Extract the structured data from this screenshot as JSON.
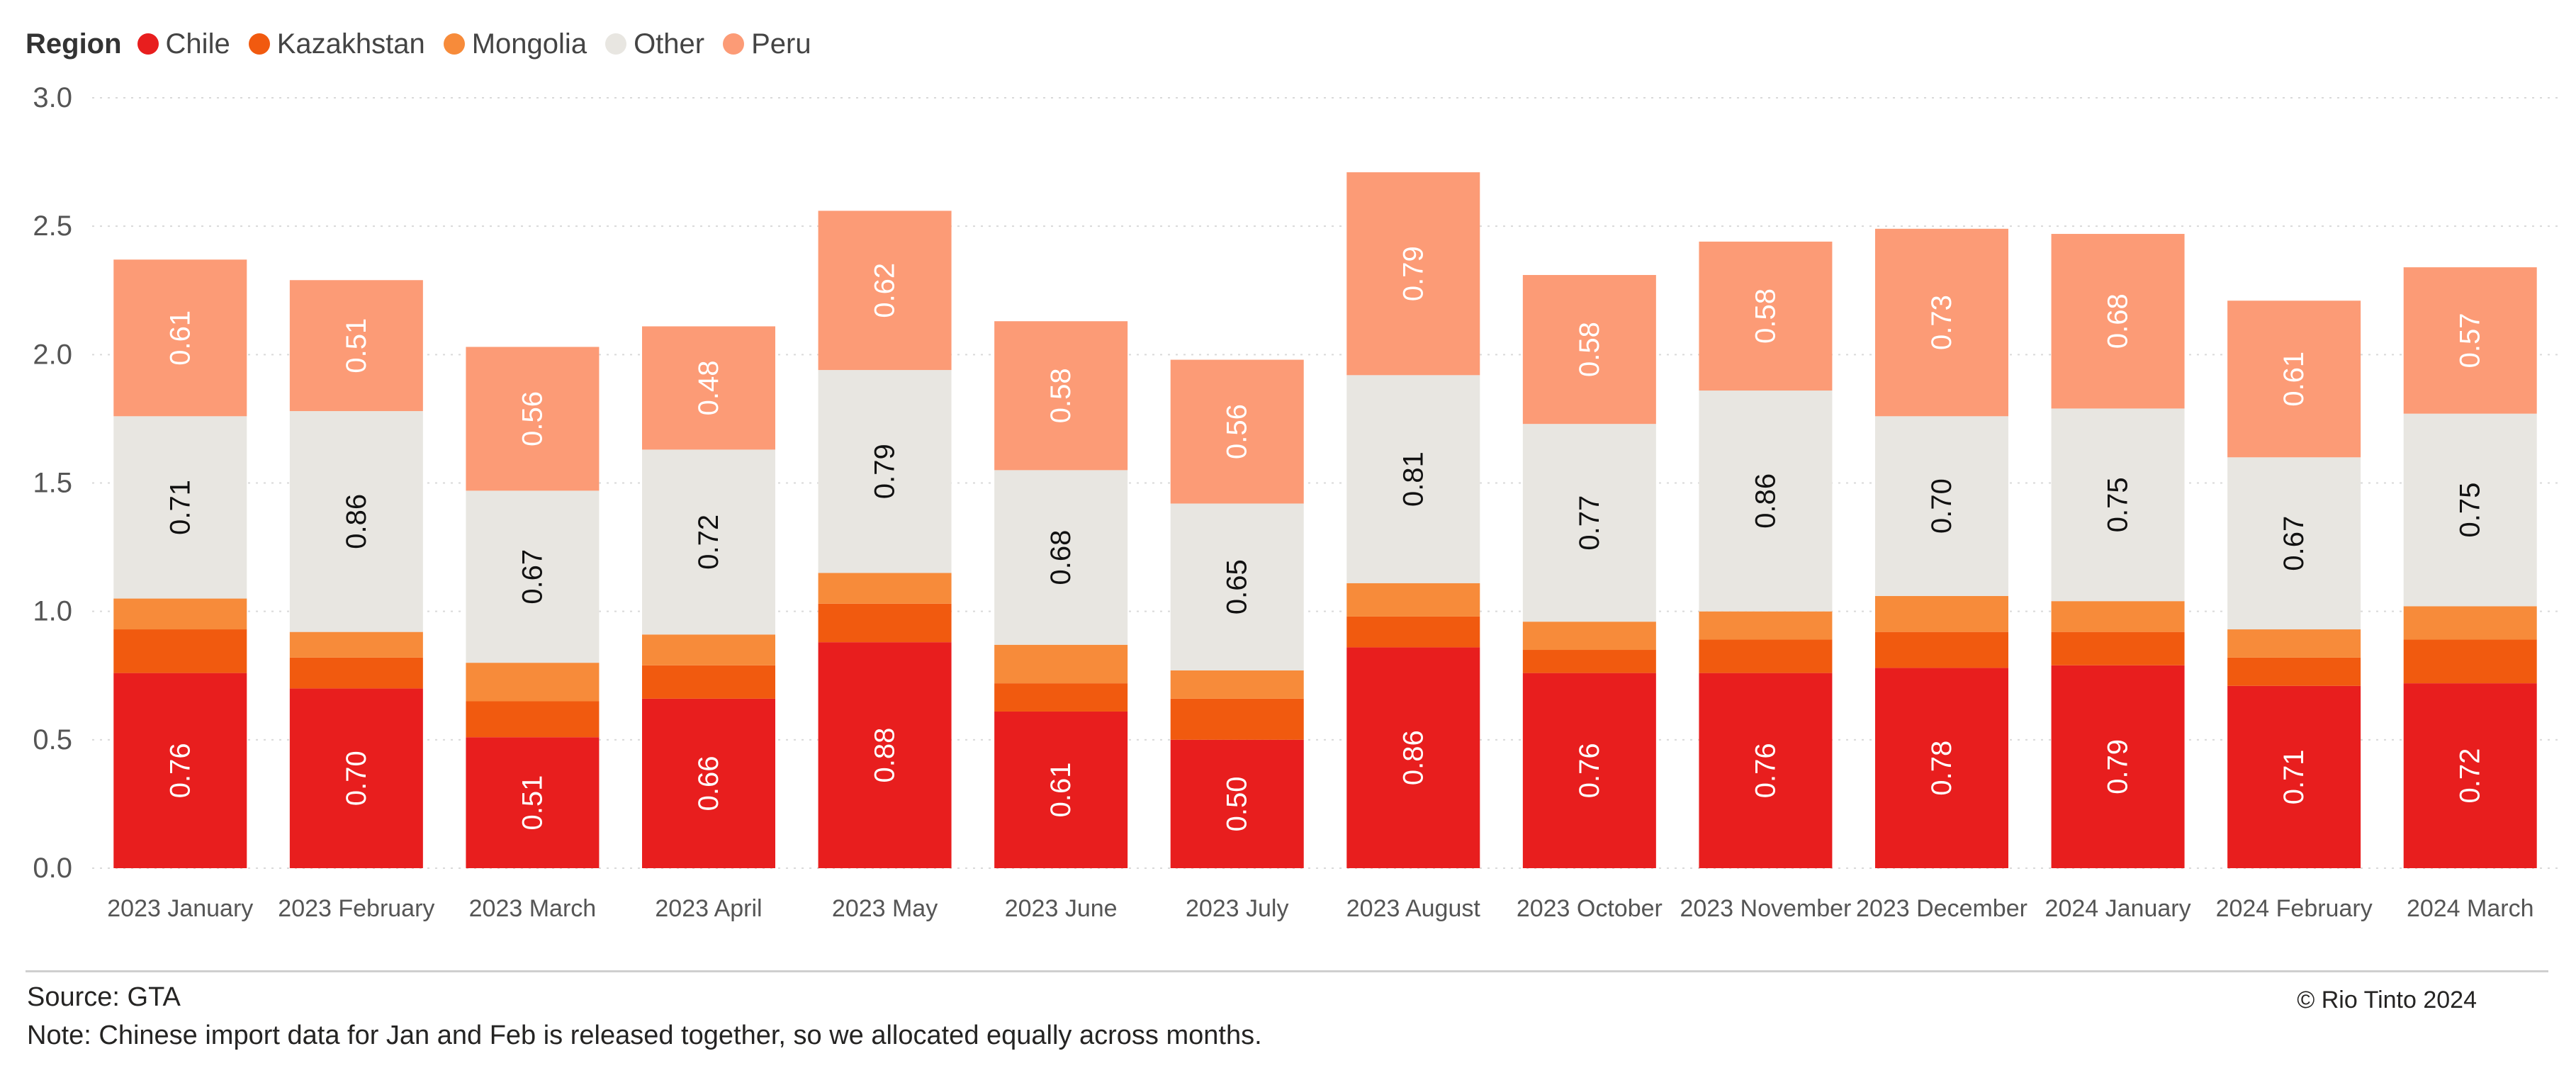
{
  "legend": {
    "title": "Region",
    "items": [
      {
        "name": "Chile",
        "color": "#E81E1E"
      },
      {
        "name": "Kazakhstan",
        "color": "#F15A0F"
      },
      {
        "name": "Mongolia",
        "color": "#F78B3A"
      },
      {
        "name": "Other",
        "color": "#E8E6E1"
      },
      {
        "name": "Peru",
        "color": "#FC9B76"
      }
    ]
  },
  "chart_data": {
    "type": "bar",
    "stacked": true,
    "categories": [
      "2023 January",
      "2023 February",
      "2023 March",
      "2023 April",
      "2023 May",
      "2023 June",
      "2023 July",
      "2023 August",
      "2023 October",
      "2023 November",
      "2023 December",
      "2024 January",
      "2024 February",
      "2024 March"
    ],
    "series": [
      {
        "name": "Chile",
        "color": "#E81E1E",
        "labelColor": "#FFFFFF",
        "showLabels": true,
        "values": [
          0.76,
          0.7,
          0.51,
          0.66,
          0.88,
          0.61,
          0.5,
          0.86,
          0.76,
          0.76,
          0.78,
          0.79,
          0.71,
          0.72
        ]
      },
      {
        "name": "Kazakhstan",
        "color": "#F15A0F",
        "labelColor": "#FFFFFF",
        "showLabels": false,
        "values": [
          0.17,
          0.12,
          0.14,
          0.13,
          0.15,
          0.11,
          0.16,
          0.12,
          0.09,
          0.13,
          0.14,
          0.13,
          0.11,
          0.17
        ]
      },
      {
        "name": "Mongolia",
        "color": "#F78B3A",
        "labelColor": "#FFFFFF",
        "showLabels": false,
        "values": [
          0.12,
          0.1,
          0.15,
          0.12,
          0.12,
          0.15,
          0.11,
          0.13,
          0.11,
          0.11,
          0.14,
          0.12,
          0.11,
          0.13
        ]
      },
      {
        "name": "Other",
        "color": "#E8E6E1",
        "labelColor": "#111111",
        "showLabels": true,
        "values": [
          0.71,
          0.86,
          0.67,
          0.72,
          0.79,
          0.68,
          0.65,
          0.81,
          0.77,
          0.86,
          0.7,
          0.75,
          0.67,
          0.75
        ]
      },
      {
        "name": "Peru",
        "color": "#FC9B76",
        "labelColor": "#FFFFFF",
        "showLabels": true,
        "values": [
          0.61,
          0.51,
          0.56,
          0.48,
          0.62,
          0.58,
          0.56,
          0.79,
          0.58,
          0.58,
          0.73,
          0.68,
          0.61,
          0.57
        ]
      }
    ],
    "value_labels": {
      "Chile": [
        "0.76",
        "0.70",
        "0.51",
        "0.66",
        "0.88",
        "0.61",
        "0.50",
        "0.86",
        "0.76",
        "0.76",
        "0.78",
        "0.79",
        "0.71",
        "0.72"
      ],
      "Other": [
        "0.71",
        "0.86",
        "0.67",
        "0.72",
        "0.79",
        "0.68",
        "0.65",
        "0.81",
        "0.77",
        "0.86",
        "0.70",
        "0.75",
        "0.67",
        "0.75"
      ],
      "Peru": [
        "0.61",
        "0.51",
        "0.56",
        "0.48",
        "0.62",
        "0.58",
        "0.56",
        "0.79",
        "0.58",
        "0.58",
        "0.73",
        "0.68",
        "0.61",
        "0.57"
      ]
    },
    "ylim": [
      0,
      3.0
    ],
    "yticks": [
      "0.0",
      "0.5",
      "1.0",
      "1.5",
      "2.0",
      "2.5",
      "3.0"
    ],
    "grid": true,
    "legend_position": "top-left",
    "xlabel": "",
    "ylabel": ""
  },
  "footer": {
    "source": "Source: GTA",
    "note": "Note: Chinese import data for Jan and Feb is released together, so we allocated equally across months.",
    "copyright": "© Rio Tinto 2024"
  }
}
